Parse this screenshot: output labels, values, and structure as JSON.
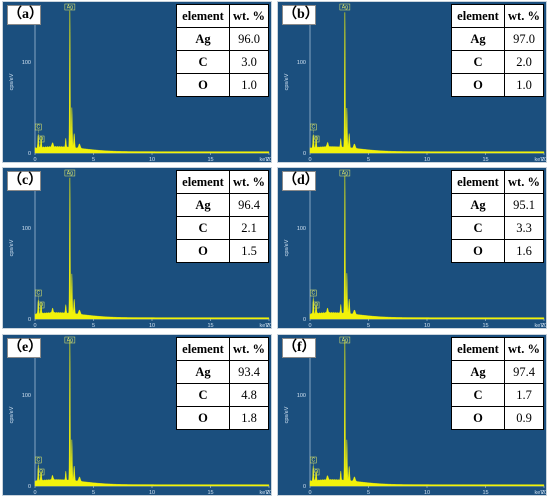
{
  "table_header": {
    "element": "element",
    "wt": "wt. %"
  },
  "axis": {
    "ylabel": "cps/eV",
    "xunit": "keV",
    "ytick": "100",
    "xticks": [
      "0",
      "5",
      "10",
      "15",
      "20"
    ]
  },
  "colors": {
    "panel_bg": "#1b4f7e",
    "spectrum": "#f2f20a",
    "axis": "#cfe0f0"
  },
  "chart_data": [
    {
      "type": "area",
      "panel_label": "（a）",
      "x": [
        0.28,
        0.52,
        2.98
      ],
      "peak_labels": [
        "C",
        "O",
        "Ag"
      ],
      "xlim": [
        0,
        20
      ],
      "ylabel": "cps/eV",
      "xlabel": "keV",
      "composition": [
        {
          "element": "Ag",
          "wt": "96.0"
        },
        {
          "element": "C",
          "wt": "3.0"
        },
        {
          "element": "O",
          "wt": "1.0"
        }
      ]
    },
    {
      "type": "area",
      "panel_label": "（b）",
      "x": [
        0.28,
        0.52,
        2.98
      ],
      "peak_labels": [
        "C",
        "O",
        "Ag"
      ],
      "xlim": [
        0,
        20
      ],
      "ylabel": "cps/eV",
      "xlabel": "keV",
      "composition": [
        {
          "element": "Ag",
          "wt": "97.0"
        },
        {
          "element": "C",
          "wt": "2.0"
        },
        {
          "element": "O",
          "wt": "1.0"
        }
      ]
    },
    {
      "type": "area",
      "panel_label": "（c）",
      "x": [
        0.28,
        0.52,
        2.98
      ],
      "peak_labels": [
        "C",
        "O",
        "Ag"
      ],
      "xlim": [
        0,
        20
      ],
      "ylabel": "cps/eV",
      "xlabel": "keV",
      "composition": [
        {
          "element": "Ag",
          "wt": "96.4"
        },
        {
          "element": "C",
          "wt": "2.1"
        },
        {
          "element": "O",
          "wt": "1.5"
        }
      ]
    },
    {
      "type": "area",
      "panel_label": "（d）",
      "x": [
        0.28,
        0.52,
        2.98
      ],
      "peak_labels": [
        "C",
        "O",
        "Ag"
      ],
      "xlim": [
        0,
        20
      ],
      "ylabel": "cps/eV",
      "xlabel": "keV",
      "composition": [
        {
          "element": "Ag",
          "wt": "95.1"
        },
        {
          "element": "C",
          "wt": "3.3"
        },
        {
          "element": "O",
          "wt": "1.6"
        }
      ]
    },
    {
      "type": "area",
      "panel_label": "（e）",
      "x": [
        0.28,
        0.52,
        2.98
      ],
      "peak_labels": [
        "C",
        "O",
        "Ag"
      ],
      "xlim": [
        0,
        20
      ],
      "ylabel": "cps/eV",
      "xlabel": "keV",
      "composition": [
        {
          "element": "Ag",
          "wt": "93.4"
        },
        {
          "element": "C",
          "wt": "4.8"
        },
        {
          "element": "O",
          "wt": "1.8"
        }
      ]
    },
    {
      "type": "area",
      "panel_label": "（f）",
      "x": [
        0.28,
        0.52,
        2.98
      ],
      "peak_labels": [
        "C",
        "O",
        "Ag"
      ],
      "xlim": [
        0,
        20
      ],
      "ylabel": "cps/eV",
      "xlabel": "keV",
      "composition": [
        {
          "element": "Ag",
          "wt": "97.4"
        },
        {
          "element": "C",
          "wt": "1.7"
        },
        {
          "element": "O",
          "wt": "0.9"
        }
      ]
    }
  ]
}
